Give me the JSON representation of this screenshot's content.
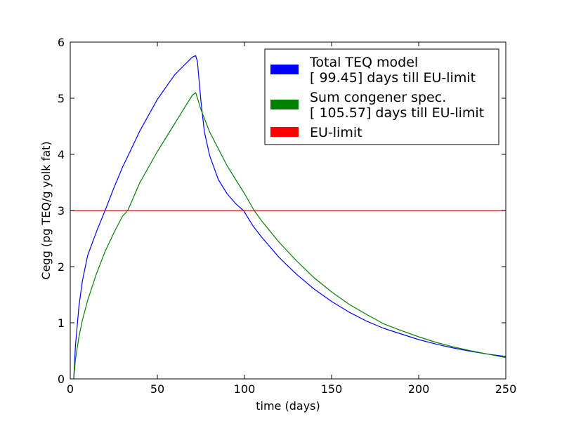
{
  "chart_data": {
    "type": "line",
    "xlabel": "time (days)",
    "ylabel": "Cegg (pg TEQ/g yolk fat)",
    "xlim": [
      0,
      250
    ],
    "ylim": [
      0,
      6
    ],
    "xticks": [
      0,
      50,
      100,
      150,
      200,
      250
    ],
    "yticks": [
      0,
      1,
      2,
      3,
      4,
      5,
      6
    ],
    "grid": false,
    "legend_position": "top-right",
    "series": [
      {
        "name": "Total TEQ model\n[ 99.45] days till EU-limit",
        "color": "#0000ff",
        "x": [
          2,
          3,
          5,
          7,
          10,
          15,
          20,
          25,
          30,
          40,
          50,
          60,
          70,
          72,
          73,
          75,
          77,
          80,
          85,
          90,
          95,
          99.45,
          105,
          110,
          120,
          130,
          140,
          150,
          160,
          170,
          180,
          190,
          200,
          210,
          220,
          230,
          240,
          250
        ],
        "y": [
          0,
          0.6,
          1.3,
          1.75,
          2.2,
          2.62,
          3.0,
          3.4,
          3.77,
          4.42,
          4.98,
          5.42,
          5.73,
          5.76,
          5.65,
          4.95,
          4.4,
          3.98,
          3.55,
          3.3,
          3.12,
          3.0,
          2.72,
          2.52,
          2.16,
          1.86,
          1.6,
          1.38,
          1.19,
          1.03,
          0.9,
          0.8,
          0.7,
          0.62,
          0.55,
          0.49,
          0.44,
          0.4
        ]
      },
      {
        "name": "Sum congener spec.\n[ 105.57] days till EU-limit",
        "color": "#008000",
        "x": [
          2,
          3,
          5,
          7,
          10,
          15,
          20,
          25,
          30,
          33,
          40,
          50,
          60,
          70,
          72,
          75,
          80,
          85,
          90,
          95,
          100,
          105.57,
          110,
          120,
          130,
          140,
          150,
          160,
          170,
          180,
          190,
          200,
          210,
          220,
          230,
          240,
          250
        ],
        "y": [
          0,
          0.35,
          0.75,
          1.05,
          1.4,
          1.87,
          2.27,
          2.6,
          2.9,
          3.0,
          3.5,
          4.05,
          4.55,
          5.05,
          5.1,
          4.8,
          4.4,
          4.1,
          3.8,
          3.55,
          3.3,
          3.0,
          2.81,
          2.43,
          2.1,
          1.8,
          1.55,
          1.33,
          1.15,
          0.98,
          0.86,
          0.75,
          0.65,
          0.57,
          0.5,
          0.44,
          0.38
        ]
      },
      {
        "name": "EU-limit",
        "color": "#ff0000",
        "x": [
          0,
          250
        ],
        "y": [
          3,
          3
        ]
      }
    ]
  }
}
